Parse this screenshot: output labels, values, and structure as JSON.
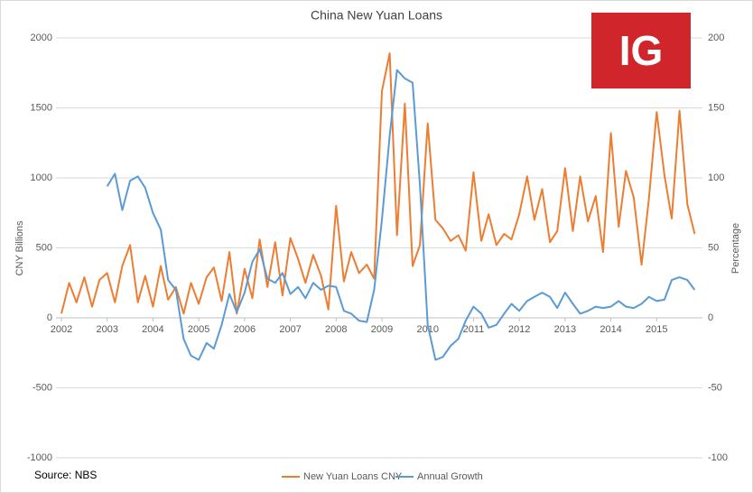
{
  "chart_data": {
    "type": "line",
    "title": "China New Yuan Loans",
    "y_label": "CNY Billions",
    "y2_label": "Percentage",
    "source": "Source: NBS",
    "logo": "IG",
    "grid": true,
    "legend": "bottom",
    "xlim": [
      2002,
      2016
    ],
    "xticks": [
      2002,
      2003,
      2004,
      2005,
      2006,
      2007,
      2008,
      2009,
      2010,
      2011,
      2012,
      2013,
      2014,
      2015
    ],
    "ylim": [
      -1000,
      2000
    ],
    "yticks": [
      -1000,
      -500,
      0,
      500,
      1000,
      1500,
      2000
    ],
    "y2lim": [
      -100,
      200
    ],
    "y2ticks": [
      -100,
      -50,
      0,
      50,
      100,
      150,
      200
    ],
    "x": [
      2002,
      2002.17,
      2002.33,
      2002.5,
      2002.67,
      2002.83,
      2003,
      2003.17,
      2003.33,
      2003.5,
      2003.67,
      2003.83,
      2004,
      2004.17,
      2004.33,
      2004.5,
      2004.67,
      2004.83,
      2005,
      2005.17,
      2005.33,
      2005.5,
      2005.67,
      2005.83,
      2006,
      2006.17,
      2006.33,
      2006.5,
      2006.67,
      2006.83,
      2007,
      2007.17,
      2007.33,
      2007.5,
      2007.67,
      2007.83,
      2008,
      2008.17,
      2008.33,
      2008.5,
      2008.67,
      2008.83,
      2009,
      2009.17,
      2009.33,
      2009.5,
      2009.67,
      2009.83,
      2010,
      2010.17,
      2010.33,
      2010.5,
      2010.67,
      2010.83,
      2011,
      2011.17,
      2011.33,
      2011.5,
      2011.67,
      2011.83,
      2012,
      2012.17,
      2012.33,
      2012.5,
      2012.67,
      2012.83,
      2013,
      2013.17,
      2013.33,
      2013.5,
      2013.67,
      2013.83,
      2014,
      2014.17,
      2014.33,
      2014.5,
      2014.67,
      2014.83,
      2015,
      2015.17,
      2015.33,
      2015.5,
      2015.67,
      2015.83
    ],
    "series": [
      {
        "name": "New Yuan Loans CNY",
        "color": "#ED7D31",
        "values": [
          30,
          250,
          110,
          290,
          80,
          270,
          320,
          110,
          370,
          520,
          110,
          300,
          80,
          370,
          130,
          220,
          30,
          250,
          100,
          290,
          360,
          120,
          470,
          30,
          350,
          140,
          560,
          220,
          540,
          160,
          570,
          420,
          250,
          450,
          300,
          60,
          800,
          260,
          470,
          320,
          380,
          280,
          1620,
          1890,
          590,
          1530,
          370,
          520,
          1390,
          700,
          640,
          550,
          590,
          480,
          1040,
          550,
          740,
          520,
          600,
          560,
          740,
          1010,
          700,
          920,
          540,
          620,
          1070,
          620,
          1010,
          690,
          870,
          470,
          1320,
          650,
          1050,
          860,
          380,
          850,
          1470,
          1020,
          710,
          1480,
          810,
          600
        ]
      },
      {
        "name": "Annual Growth",
        "color": "#5B9BD5",
        "axis": "y2",
        "values": [
          null,
          null,
          null,
          null,
          null,
          null,
          94,
          103,
          77,
          98,
          101,
          93,
          75,
          63,
          27,
          20,
          -15,
          -27,
          -30,
          -18,
          -22,
          -5,
          17,
          4,
          18,
          40,
          49,
          28,
          25,
          32,
          17,
          22,
          14,
          25,
          20,
          23,
          22,
          5,
          3,
          -2,
          -3,
          20,
          70,
          130,
          177,
          171,
          168,
          95,
          -5,
          -30,
          -28,
          -20,
          -15,
          -2,
          8,
          3,
          -7,
          -5,
          3,
          10,
          5,
          12,
          15,
          18,
          15,
          7,
          18,
          10,
          3,
          5,
          8,
          7,
          8,
          12,
          8,
          7,
          10,
          15,
          12,
          13,
          27,
          29,
          27,
          20
        ]
      }
    ]
  }
}
